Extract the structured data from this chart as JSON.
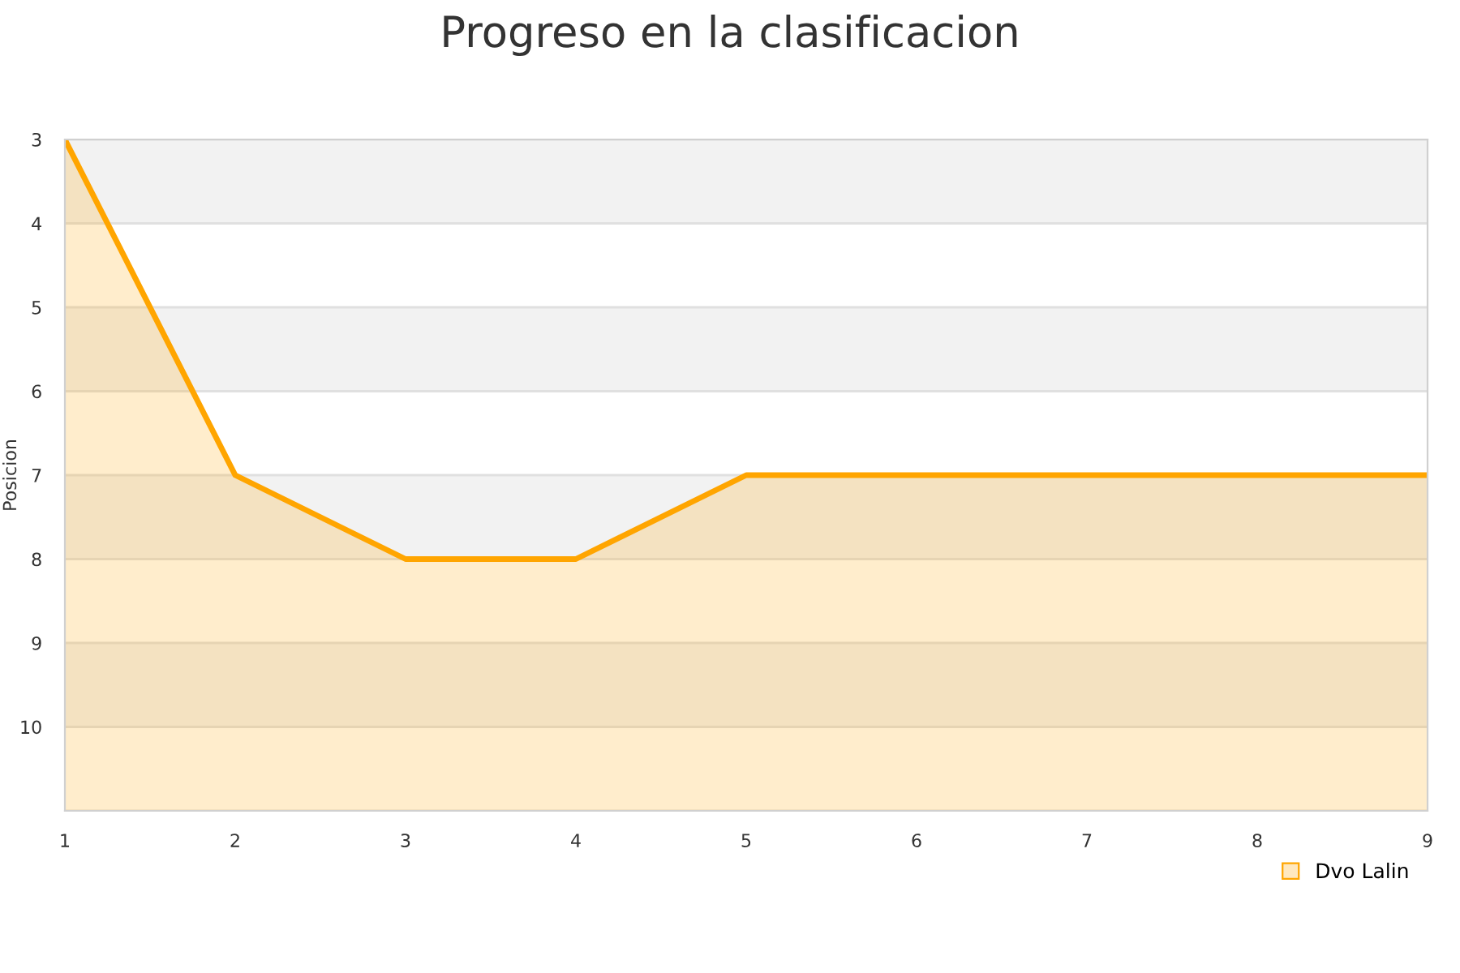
{
  "chart_data": {
    "type": "area",
    "title": "Progreso en la clasificacion",
    "ylabel": "Posicion",
    "x": [
      1,
      2,
      3,
      4,
      5,
      6,
      7,
      8,
      9
    ],
    "series": [
      {
        "name": "Dvo Lalin",
        "color": "#ffa500",
        "values": [
          3,
          7,
          8,
          8,
          7,
          7,
          7,
          7,
          7
        ]
      }
    ],
    "xlim": [
      1,
      9
    ],
    "xticks": [
      1,
      2,
      3,
      4,
      5,
      6,
      7,
      8,
      9
    ],
    "ylim": [
      11,
      3
    ],
    "yticks": [
      3,
      4,
      5,
      6,
      7,
      8,
      9,
      10,
      {
        "value": 11,
        "label": null
      }
    ],
    "bands": [
      {
        "axis": "y",
        "from": 3,
        "to": 4,
        "color": "#f2f2f2"
      },
      {
        "axis": "y",
        "from": 5,
        "to": 6,
        "color": "#f2f2f2"
      },
      {
        "axis": "y",
        "from": 7,
        "to": 8,
        "color": "#f2f2f2"
      },
      {
        "axis": "y",
        "from": 9,
        "to": 10,
        "color": "#f2f2f2"
      }
    ],
    "grid": "y",
    "legend": "bottom right"
  }
}
